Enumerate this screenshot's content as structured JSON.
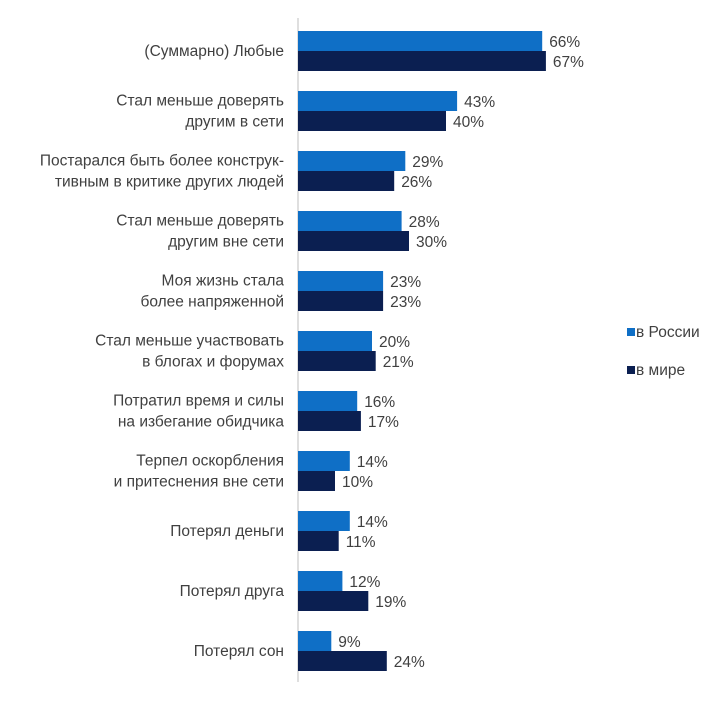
{
  "chart_data": {
    "type": "bar",
    "orientation": "horizontal",
    "title": "",
    "xlabel": "",
    "ylabel": "",
    "xlim": [
      0,
      100
    ],
    "grid": false,
    "legend_position": "right",
    "value_suffix": "%",
    "categories": [
      [
        "(Суммарно) Любые"
      ],
      [
        "Стал меньше доверять",
        "другим в сети"
      ],
      [
        "Постарался быть более конструк-",
        "тивным в критике других людей"
      ],
      [
        "Стал меньше  доверять",
        "другим вне сети"
      ],
      [
        "Моя жизнь стала",
        "более напряженной"
      ],
      [
        "Стал меньше участвовать",
        "в блогах и форумах"
      ],
      [
        "Потратил время и силы",
        "на избегание обидчика"
      ],
      [
        "Терпел оскорбления",
        "и притеснения вне сети"
      ],
      [
        "Потерял деньги"
      ],
      [
        "Потерял друга"
      ],
      [
        "Потерял сон"
      ]
    ],
    "series": [
      {
        "name": "в России",
        "color": "#0f6fc6",
        "values": [
          66,
          43,
          29,
          28,
          23,
          20,
          16,
          14,
          14,
          12,
          9
        ]
      },
      {
        "name": "в мире",
        "color": "#0b1f51",
        "values": [
          67,
          40,
          26,
          30,
          23,
          21,
          17,
          10,
          11,
          19,
          24
        ]
      }
    ]
  }
}
